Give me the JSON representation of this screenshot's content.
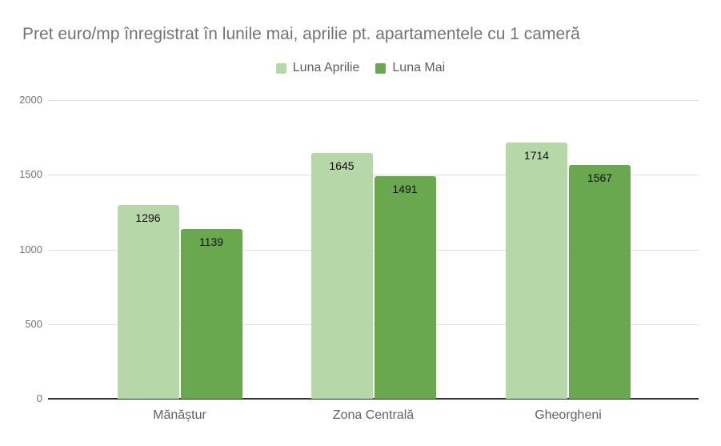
{
  "title": "Pret euro/mp înregistrat în lunile mai, aprilie pt. apartamentele cu 1 cameră",
  "chart_data": {
    "type": "bar",
    "title": "Pret euro/mp înregistrat în lunile mai, aprilie pt. apartamentele cu 1 cameră",
    "categories": [
      "Mănăștur",
      "Zona Centrală",
      "Gheorgheni"
    ],
    "series": [
      {
        "name": "Luna Aprilie",
        "color": "#b6d7a8",
        "values": [
          1296,
          1645,
          1714
        ]
      },
      {
        "name": "Luna Mai",
        "color": "#6aa84f",
        "values": [
          1139,
          1491,
          1567
        ]
      }
    ],
    "xlabel": "",
    "ylabel": "",
    "ylim": [
      0,
      2000
    ],
    "yticks": [
      0,
      500,
      1000,
      1500,
      2000
    ],
    "grid": true,
    "legend_position": "top",
    "value_labels": true
  },
  "colors": {
    "background": "#ffffff",
    "title_text": "#737373",
    "legend_text": "#5f5f5f",
    "tick_text": "#757575",
    "category_text": "#616161",
    "value_label_text": "#111111",
    "gridline": "#dedede",
    "axis_line": "#333333",
    "series_light_green": "#b6d7a8",
    "series_dark_green": "#6aa84f"
  }
}
